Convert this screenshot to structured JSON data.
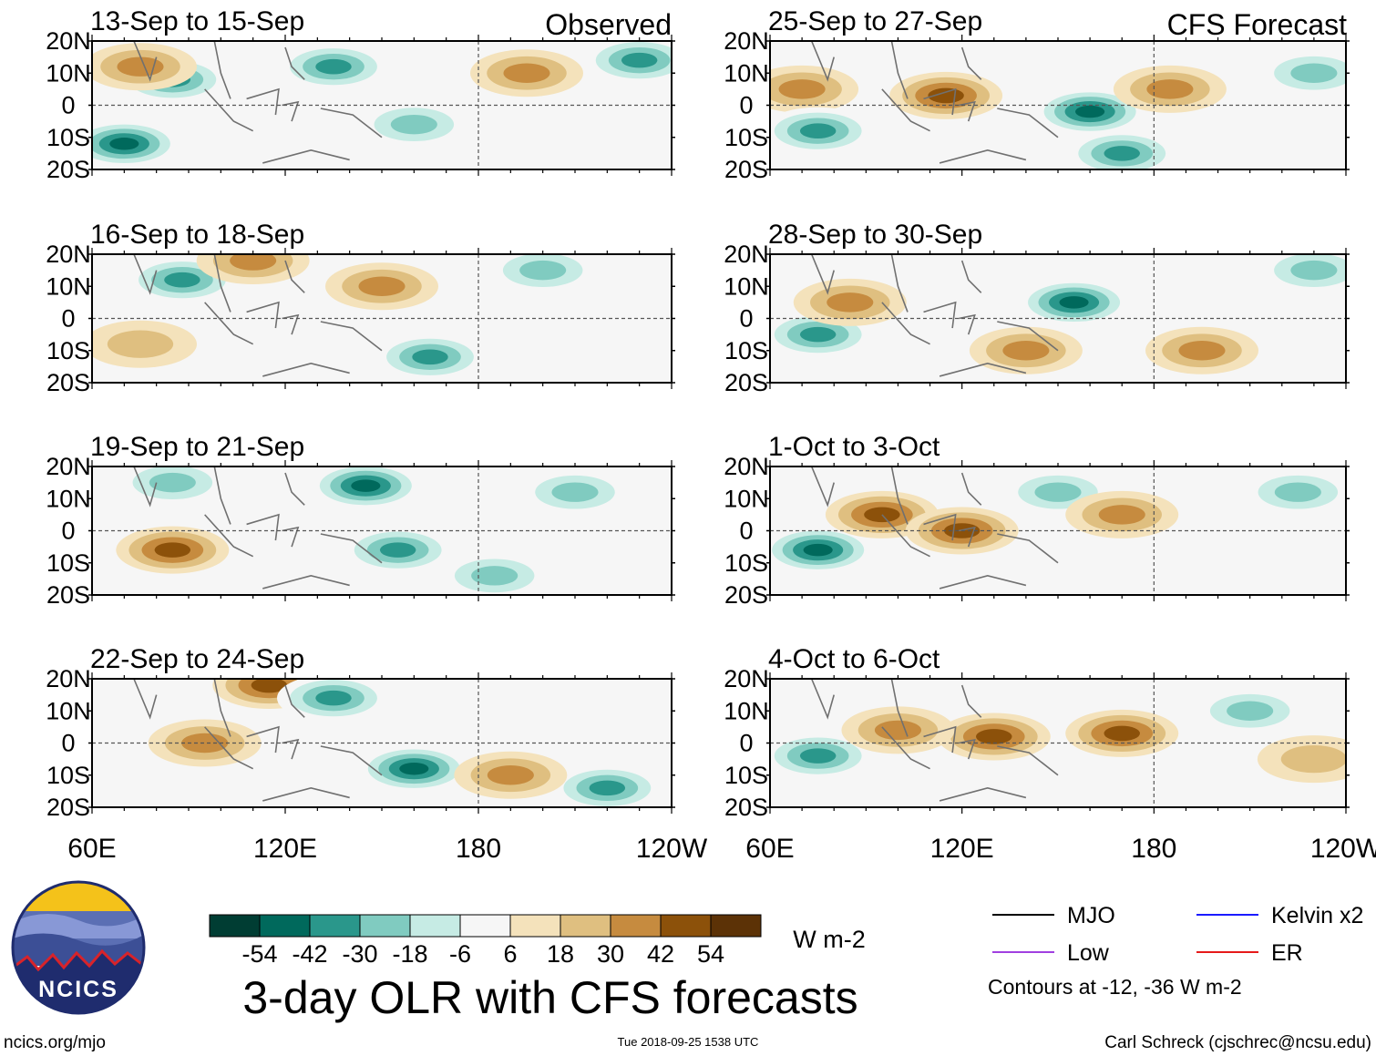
{
  "chart_data": {
    "type": "heatmap",
    "title": "3-day OLR with CFS forecasts",
    "variable": "OLR anomaly",
    "units": "W m-2",
    "colorbar": {
      "ticks": [
        "-54",
        "-42",
        "-30",
        "-18",
        "-6",
        "6",
        "18",
        "30",
        "42",
        "54"
      ],
      "colors": [
        "#003d33",
        "#00695c",
        "#2a978b",
        "#80cbc0",
        "#c6ebe4",
        "#f6f6f6",
        "#f4e2bb",
        "#dfbf80",
        "#c68b3f",
        "#8c510a",
        "#5c3206"
      ]
    },
    "x_axis": {
      "range": [
        "60E",
        "120W"
      ],
      "ticks": [
        "60E",
        "120E",
        "180",
        "120W"
      ],
      "tick_lon": [
        60,
        120,
        180,
        240
      ]
    },
    "y_axis": {
      "range": [
        "20S",
        "20N"
      ],
      "ticks": [
        "20N",
        "10N",
        "0",
        "10S",
        "20S"
      ],
      "tick_lat": [
        20,
        10,
        0,
        -10,
        -20
      ]
    },
    "column_labels": {
      "left": "Observed",
      "right": "CFS Forecast"
    },
    "panels": [
      {
        "column": "left",
        "date_range": "13-Sep to 15-Sep",
        "anomalies": [
          [
            85,
            8,
            -40
          ],
          [
            160,
            -6,
            -35
          ],
          [
            135,
            12,
            -45
          ],
          [
            75,
            12,
            35
          ],
          [
            230,
            14,
            -40
          ],
          [
            195,
            10,
            30
          ],
          [
            70,
            -12,
            -50
          ]
        ]
      },
      {
        "column": "left",
        "date_range": "16-Sep to 18-Sep",
        "anomalies": [
          [
            88,
            12,
            -45
          ],
          [
            150,
            10,
            35
          ],
          [
            165,
            -12,
            -40
          ],
          [
            110,
            18,
            30
          ],
          [
            200,
            15,
            -25
          ],
          [
            75,
            -8,
            20
          ]
        ]
      },
      {
        "column": "left",
        "date_range": "19-Sep to 21-Sep",
        "anomalies": [
          [
            85,
            -6,
            40
          ],
          [
            145,
            14,
            -50
          ],
          [
            155,
            -6,
            -40
          ],
          [
            85,
            15,
            -35
          ],
          [
            185,
            -14,
            -25
          ],
          [
            210,
            12,
            -30
          ]
        ]
      },
      {
        "column": "left",
        "date_range": "22-Sep to 24-Sep",
        "anomalies": [
          [
            115,
            18,
            40
          ],
          [
            135,
            14,
            -45
          ],
          [
            160,
            -8,
            -50
          ],
          [
            95,
            0,
            30
          ],
          [
            220,
            -14,
            -40
          ],
          [
            190,
            -10,
            30
          ]
        ]
      },
      {
        "column": "right",
        "date_range": "25-Sep to 27-Sep",
        "anomalies": [
          [
            160,
            -2,
            -55
          ],
          [
            70,
            5,
            35
          ],
          [
            115,
            3,
            40
          ],
          [
            75,
            -8,
            -45
          ],
          [
            230,
            10,
            -35
          ],
          [
            185,
            5,
            30
          ],
          [
            170,
            -15,
            -45
          ]
        ]
      },
      {
        "column": "right",
        "date_range": "28-Sep to 30-Sep",
        "anomalies": [
          [
            155,
            5,
            -55
          ],
          [
            75,
            -5,
            -45
          ],
          [
            140,
            -10,
            35
          ],
          [
            85,
            5,
            35
          ],
          [
            230,
            15,
            -30
          ],
          [
            195,
            -10,
            25
          ]
        ]
      },
      {
        "column": "right",
        "date_range": "1-Oct to 3-Oct",
        "anomalies": [
          [
            75,
            -6,
            -50
          ],
          [
            150,
            12,
            -35
          ],
          [
            95,
            5,
            40
          ],
          [
            120,
            0,
            40
          ],
          [
            170,
            5,
            30
          ],
          [
            225,
            12,
            -25
          ]
        ]
      },
      {
        "column": "right",
        "date_range": "4-Oct to 6-Oct",
        "anomalies": [
          [
            75,
            -4,
            -45
          ],
          [
            170,
            3,
            45
          ],
          [
            130,
            2,
            40
          ],
          [
            100,
            4,
            35
          ],
          [
            210,
            10,
            -30
          ],
          [
            230,
            -5,
            20
          ]
        ]
      }
    ],
    "legend": {
      "items": [
        {
          "label": "MJO",
          "color": "#000000"
        },
        {
          "label": "Kelvin x2",
          "color": "#1a1aff"
        },
        {
          "label": "Low",
          "color": "#a040e0"
        },
        {
          "label": "ER",
          "color": "#e61a1a"
        }
      ],
      "note": "Contours at -12, -36 W m-2"
    }
  },
  "logo": {
    "text": "NCICS"
  },
  "footer": {
    "url": "ncics.org/mjo",
    "timestamp": "Tue 2018-09-25 1538 UTC",
    "credit": "Carl Schreck (cjschrec@ncsu.edu)"
  }
}
